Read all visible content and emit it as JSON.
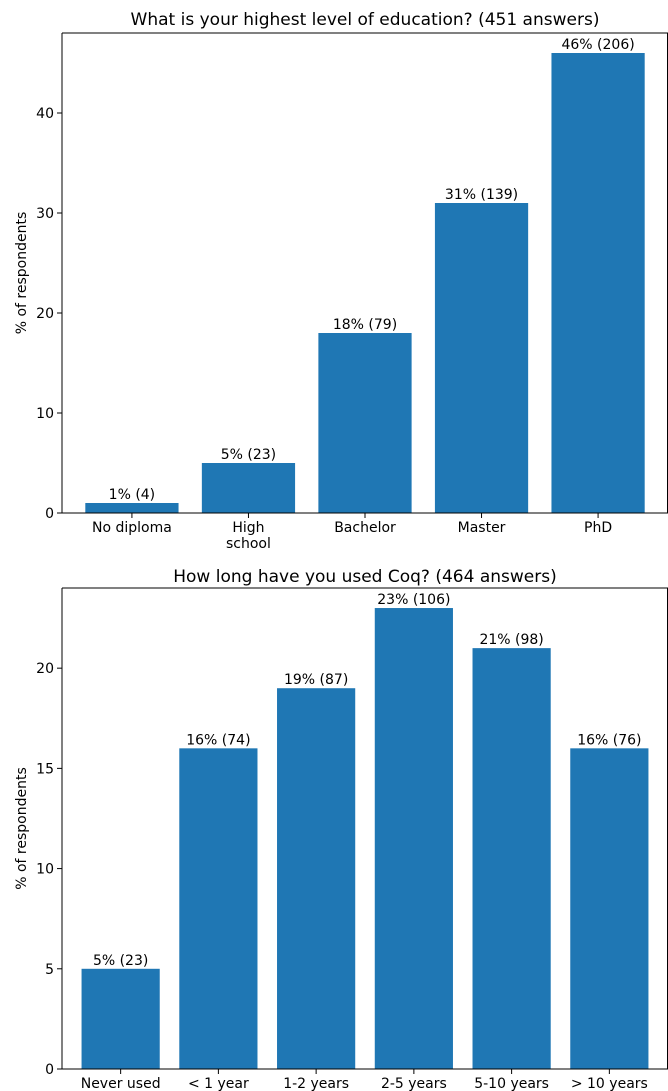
{
  "chart_data": [
    {
      "type": "bar",
      "title": "What is your highest level of education? (451 answers)",
      "xlabel": "",
      "ylabel": "% of respondents",
      "categories": [
        "No diploma",
        "High school",
        "Bachelor",
        "Master",
        "PhD"
      ],
      "category_lines": [
        [
          "No diploma"
        ],
        [
          "High",
          "school"
        ],
        [
          "Bachelor"
        ],
        [
          "Master"
        ],
        [
          "PhD"
        ]
      ],
      "values": [
        1,
        5,
        18,
        31,
        46
      ],
      "data_labels": [
        "1% (4)",
        "5% (23)",
        "18% (79)",
        "31% (139)",
        "46% (206)"
      ],
      "ylim": [
        0,
        48
      ],
      "yticks": [
        0,
        10,
        20,
        30,
        40
      ],
      "color": "#1f77b4",
      "grid": false
    },
    {
      "type": "bar",
      "title": "How long have you used Coq? (464 answers)",
      "xlabel": "",
      "ylabel": "% of respondents",
      "categories": [
        "Never used",
        "< 1 year",
        "1-2 years",
        "2-5 years",
        "5-10 years",
        "> 10 years"
      ],
      "category_lines": [
        [
          "Never used"
        ],
        [
          "< 1 year"
        ],
        [
          "1-2 years"
        ],
        [
          "2-5 years"
        ],
        [
          "5-10 years"
        ],
        [
          "> 10 years"
        ]
      ],
      "values": [
        5,
        16,
        19,
        23,
        21,
        16
      ],
      "data_labels": [
        "5% (23)",
        "16% (74)",
        "19% (87)",
        "23% (106)",
        "21% (98)",
        "16% (76)"
      ],
      "ylim": [
        0,
        24
      ],
      "yticks": [
        0,
        5,
        10,
        15,
        20
      ],
      "color": "#1f77b4",
      "grid": false
    }
  ]
}
